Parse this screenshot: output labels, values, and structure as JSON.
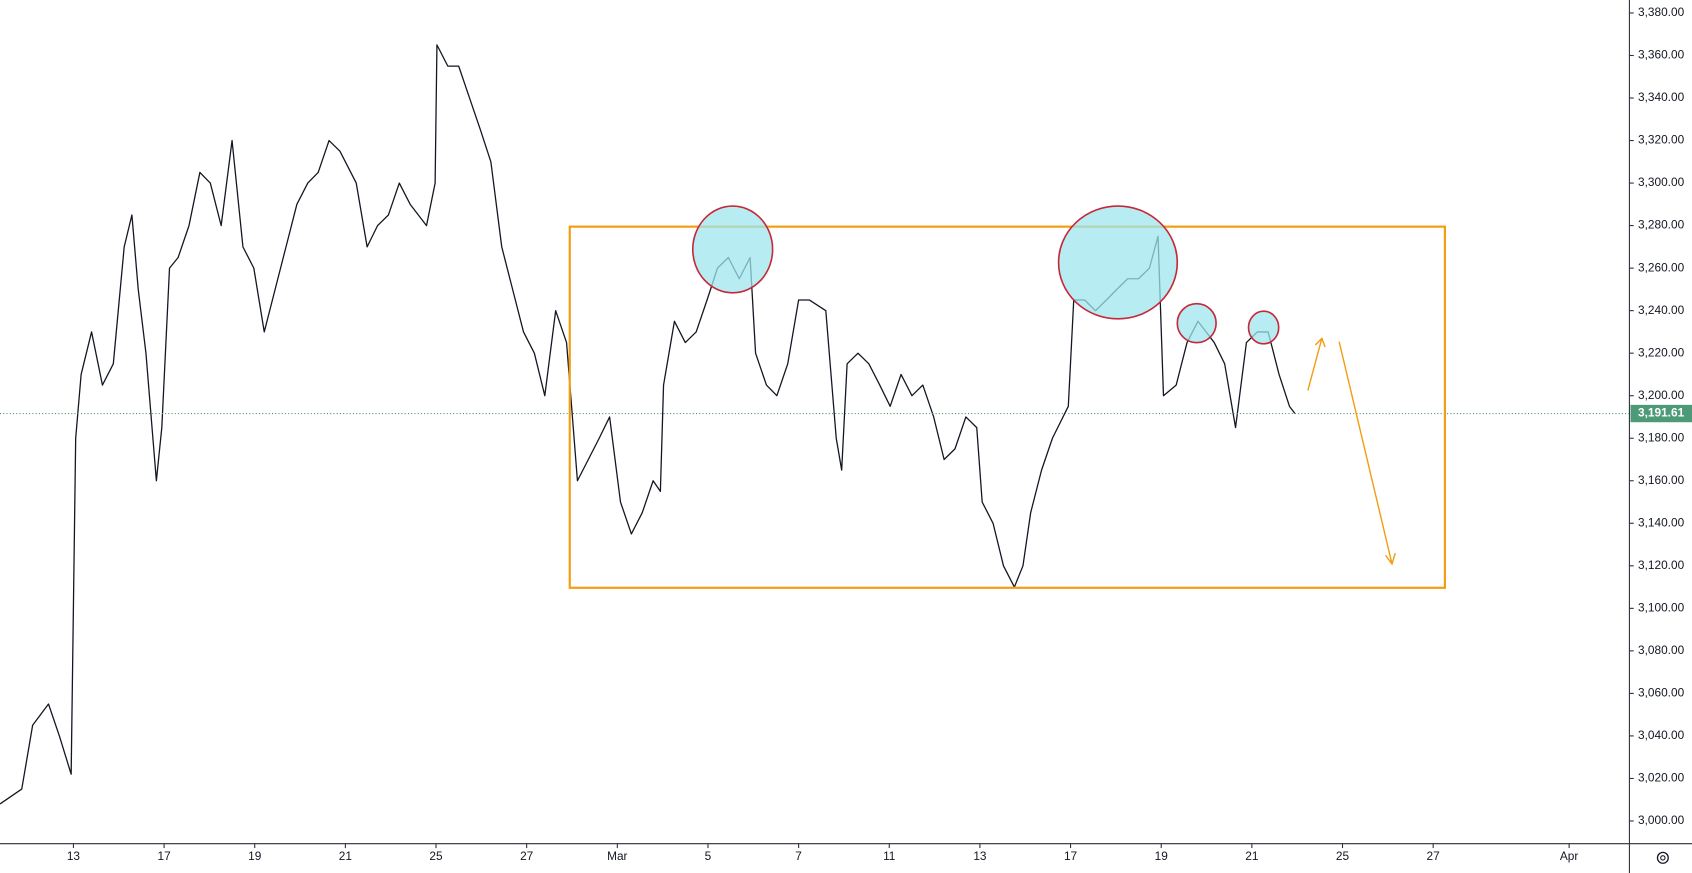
{
  "chart_data": {
    "type": "line",
    "color": "#131722",
    "x": [
      -1.62,
      -1.14,
      -0.9,
      -0.55,
      -0.31,
      -0.05,
      0.05,
      0.17,
      0.4,
      0.64,
      0.88,
      1.12,
      1.29,
      1.43,
      1.6,
      1.83,
      1.95,
      2.12,
      2.31,
      2.55,
      2.79,
      3.02,
      3.26,
      3.5,
      3.74,
      3.98,
      4.21,
      4.45,
      4.69,
      4.93,
      5.17,
      5.4,
      5.64,
      5.88,
      6.24,
      6.48,
      6.71,
      6.95,
      7.19,
      7.43,
      7.79,
      7.98,
      8.02,
      8.26,
      8.5,
      8.74,
      8.98,
      9.21,
      9.45,
      9.69,
      9.93,
      10.17,
      10.4,
      10.64,
      10.88,
      11.12,
      11.36,
      11.6,
      11.83,
      12.07,
      12.31,
      12.55,
      12.79,
      12.95,
      13.02,
      13.26,
      13.5,
      13.74,
      13.98,
      14.21,
      14.45,
      14.69,
      14.93,
      15.05,
      15.29,
      15.52,
      15.76,
      16.0,
      16.24,
      16.6,
      16.83,
      16.95,
      17.07,
      17.31,
      17.55,
      17.79,
      18.02,
      18.26,
      18.5,
      18.74,
      18.98,
      19.21,
      19.45,
      19.69,
      19.93,
      20.05,
      20.29,
      20.52,
      20.76,
      20.95,
      21.12,
      21.36,
      21.6,
      21.95,
      22.07,
      22.31,
      22.55,
      22.79,
      23.02,
      23.26,
      23.5,
      23.74,
      23.93,
      24.05,
      24.33,
      24.57,
      24.81,
      25.17,
      25.4,
      25.64,
      25.88,
      26.12,
      26.36,
      26.6,
      26.83,
      26.95
    ],
    "values": [
      3008,
      3015,
      3045,
      3055,
      3040,
      3022,
      3180,
      3210,
      3230,
      3205,
      3215,
      3270,
      3285,
      3250,
      3220,
      3160,
      3185,
      3260,
      3265,
      3280,
      3305,
      3300,
      3280,
      3320,
      3270,
      3260,
      3230,
      3250,
      3270,
      3290,
      3300,
      3305,
      3320,
      3315,
      3300,
      3270,
      3280,
      3285,
      3300,
      3290,
      3280,
      3300,
      3365,
      3355,
      3355,
      3340,
      3325,
      3310,
      3270,
      3250,
      3230,
      3220,
      3200,
      3240,
      3225,
      3160,
      3170,
      3180,
      3190,
      3150,
      3135,
      3145,
      3160,
      3155,
      3205,
      3235,
      3225,
      3230,
      3245,
      3260,
      3265,
      3255,
      3265,
      3220,
      3205,
      3200,
      3215,
      3245,
      3245,
      3240,
      3180,
      3165,
      3215,
      3220,
      3215,
      3205,
      3195,
      3210,
      3200,
      3205,
      3190,
      3170,
      3175,
      3190,
      3185,
      3150,
      3140,
      3120,
      3110,
      3120,
      3145,
      3165,
      3180,
      3195,
      3245,
      3245,
      3240,
      3245,
      3250,
      3255,
      3255,
      3260,
      3275,
      3200,
      3205,
      3225,
      3235,
      3225,
      3215,
      3185,
      3225,
      3230,
      3230,
      3210,
      3195,
      3191.61
    ],
    "xlim": [
      -1.62,
      34.33
    ],
    "ylim": [
      2989.3,
      3386.1
    ],
    "xticks": [
      {
        "value": 0,
        "label": "13"
      },
      {
        "value": 2,
        "label": "17"
      },
      {
        "value": 4,
        "label": "19"
      },
      {
        "value": 6,
        "label": "21"
      },
      {
        "value": 8,
        "label": "25"
      },
      {
        "value": 10,
        "label": "27"
      },
      {
        "value": 12,
        "label": "Mar"
      },
      {
        "value": 14,
        "label": "5"
      },
      {
        "value": 16,
        "label": "7"
      },
      {
        "value": 18,
        "label": "11"
      },
      {
        "value": 20,
        "label": "13"
      },
      {
        "value": 22,
        "label": "17"
      },
      {
        "value": 24,
        "label": "19"
      },
      {
        "value": 26,
        "label": "21"
      },
      {
        "value": 28,
        "label": "25"
      },
      {
        "value": 30,
        "label": "27"
      },
      {
        "value": 33,
        "label": "Apr"
      }
    ],
    "yticks": [
      {
        "value": 3000,
        "label": "3,000.00"
      },
      {
        "value": 3020,
        "label": "3,020.00"
      },
      {
        "value": 3040,
        "label": "3,040.00"
      },
      {
        "value": 3060,
        "label": "3,060.00"
      },
      {
        "value": 3080,
        "label": "3,080.00"
      },
      {
        "value": 3100,
        "label": "3,100.00"
      },
      {
        "value": 3120,
        "label": "3,120.00"
      },
      {
        "value": 3140,
        "label": "3,140.00"
      },
      {
        "value": 3160,
        "label": "3,160.00"
      },
      {
        "value": 3180,
        "label": "3,180.00"
      },
      {
        "value": 3200,
        "label": "3,200.00"
      },
      {
        "value": 3220,
        "label": "3,220.00"
      },
      {
        "value": 3240,
        "label": "3,240.00"
      },
      {
        "value": 3260,
        "label": "3,260.00"
      },
      {
        "value": 3280,
        "label": "3,280.00"
      },
      {
        "value": 3300,
        "label": "3,300.00"
      },
      {
        "value": 3320,
        "label": "3,320.00"
      },
      {
        "value": 3340,
        "label": "3,340.00"
      },
      {
        "value": 3360,
        "label": "3,360.00"
      },
      {
        "value": 3380,
        "label": "3,380.00"
      }
    ],
    "current_price": {
      "value": 3191.61,
      "label": "3,191.61"
    },
    "current_price_color": "#4c9a78",
    "grid": false
  }
}
